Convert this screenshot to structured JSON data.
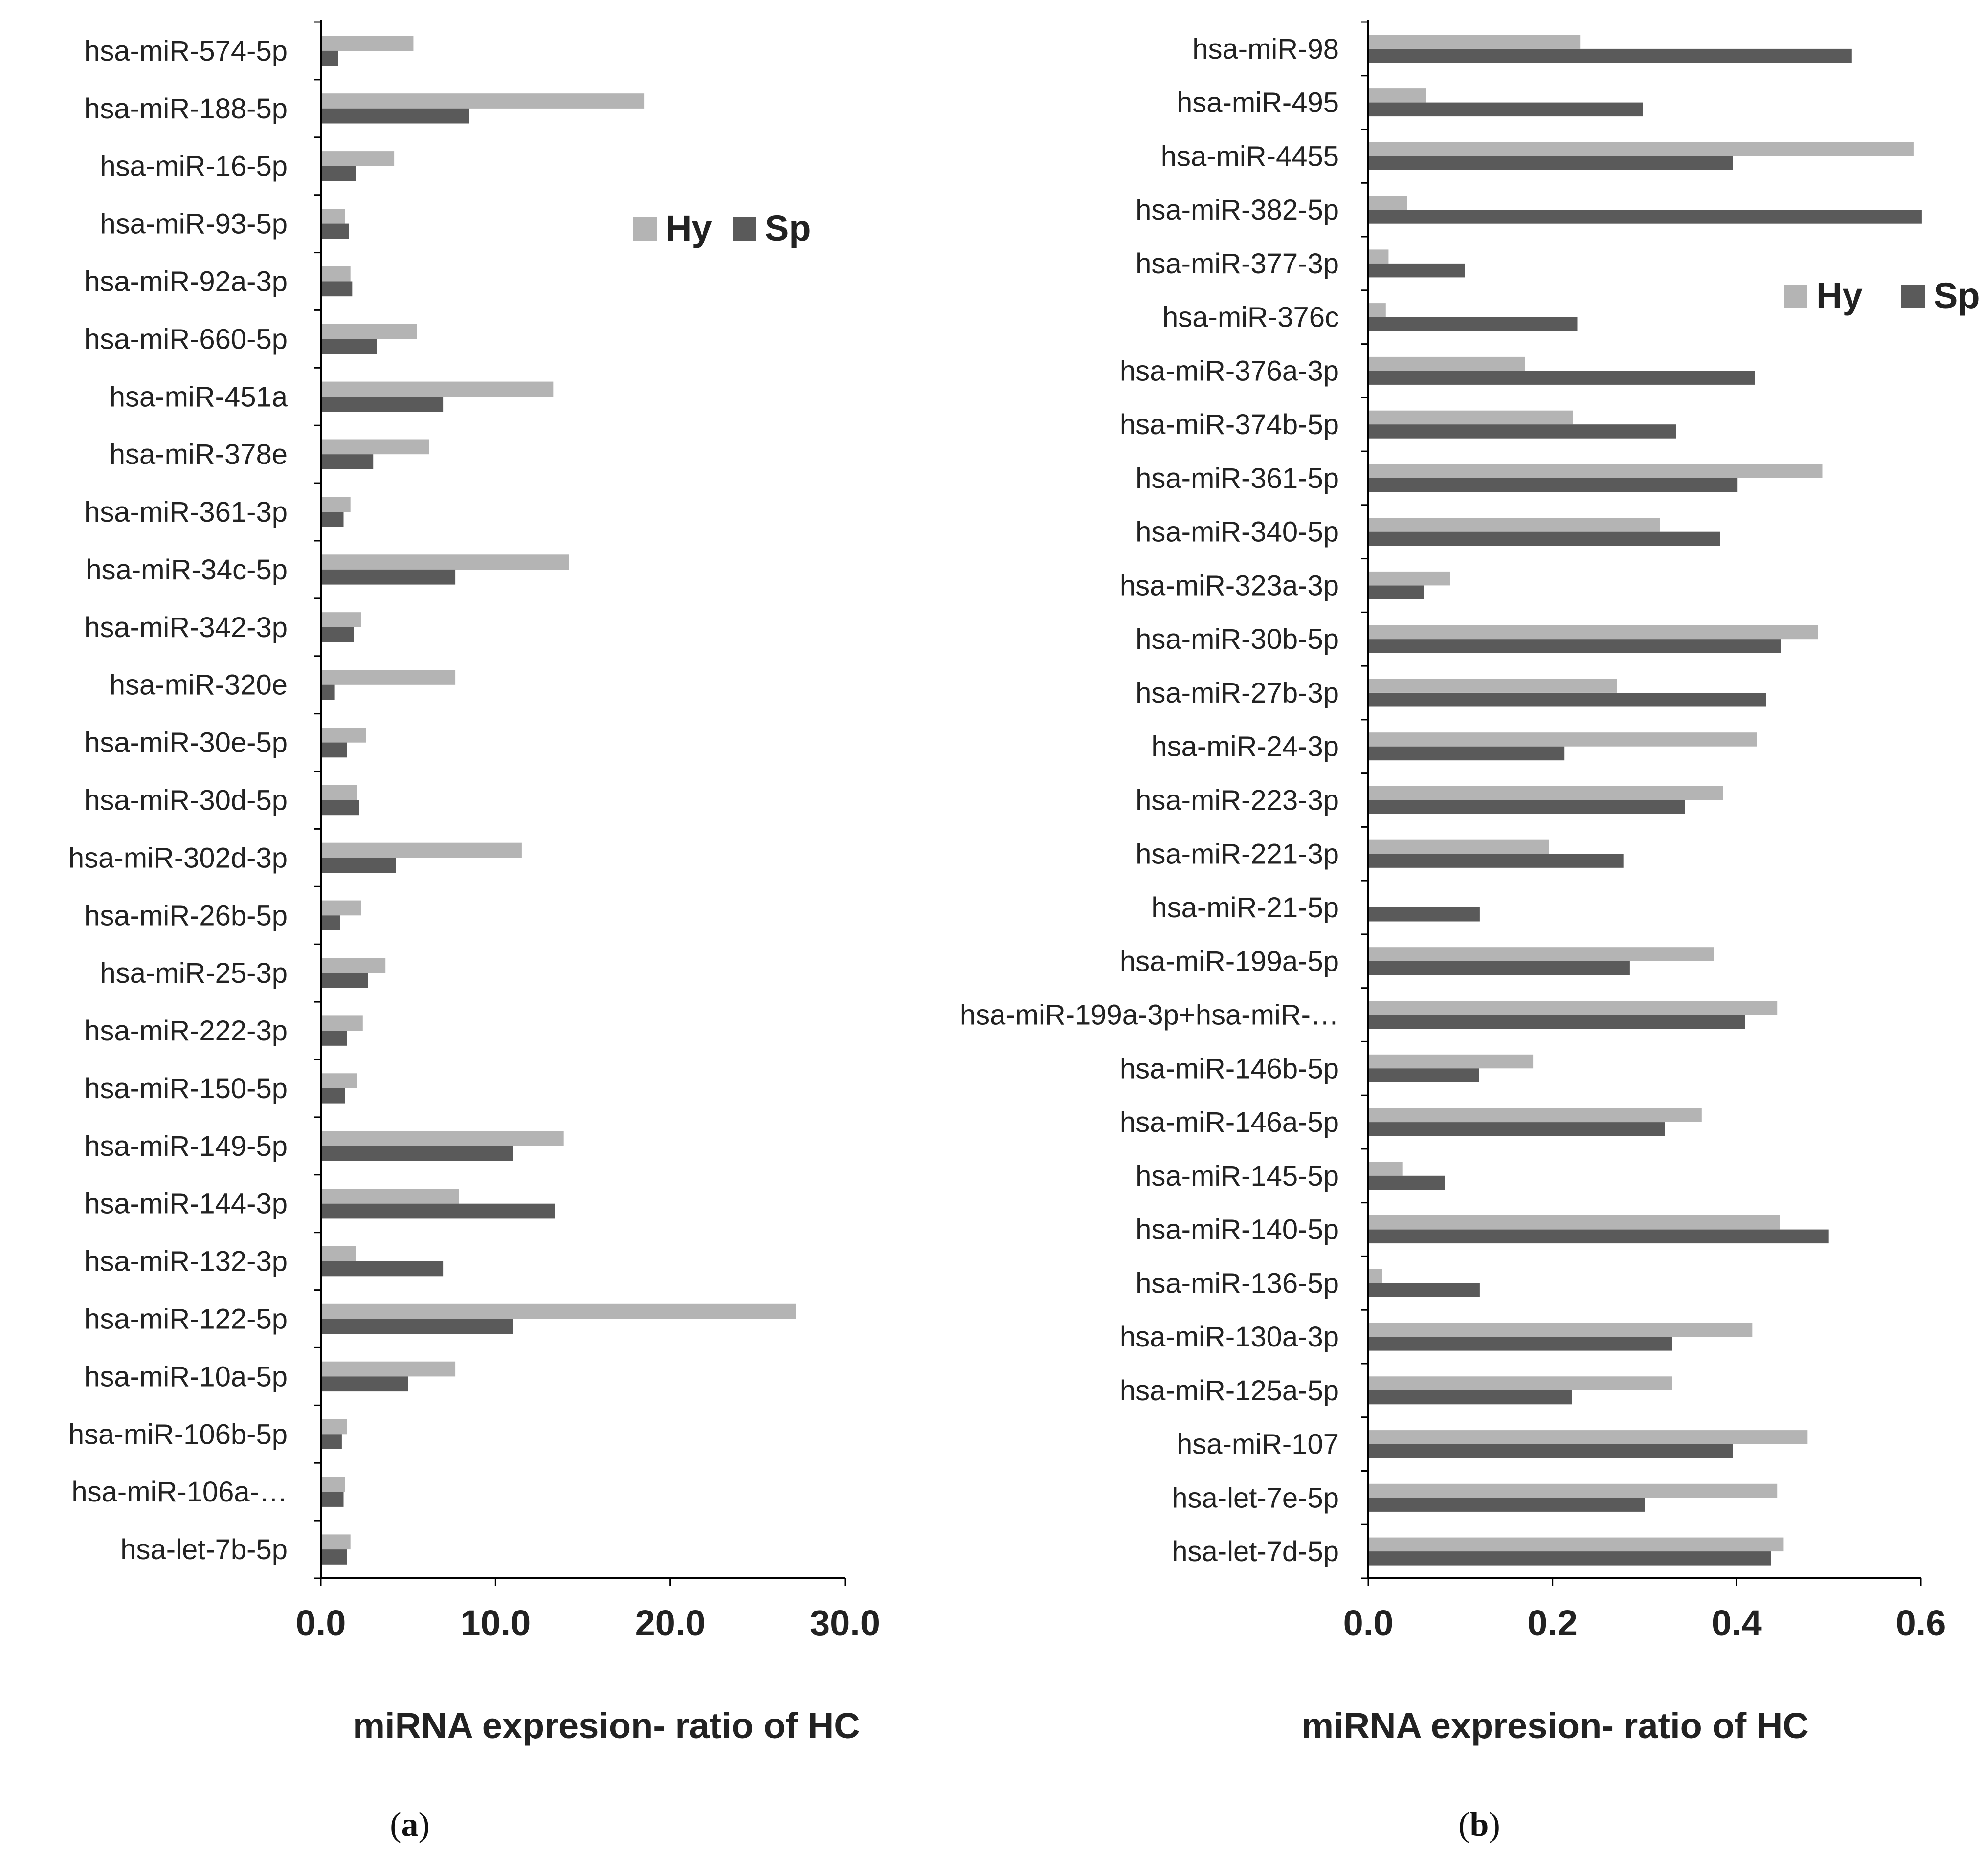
{
  "colors": {
    "hy": "#b4b4b4",
    "sp": "#5a5a5a",
    "axis": "#000000"
  },
  "chart_data": [
    {
      "type": "bar",
      "orientation": "horizontal",
      "panel_label": "a",
      "xlabel": "miRNA expresion- ratio of HC",
      "xlim": [
        0,
        30
      ],
      "xticks": [
        0,
        10,
        20,
        30
      ],
      "xtick_labels": [
        "0.0",
        "10.0",
        "20.0",
        "30.0"
      ],
      "legend_position": "top-right",
      "categories": [
        "hsa-miR-574-5p",
        "hsa-miR-188-5p",
        "hsa-miR-16-5p",
        "hsa-miR-93-5p",
        "hsa-miR-92a-3p",
        "hsa-miR-660-5p",
        "hsa-miR-451a",
        "hsa-miR-378e",
        "hsa-miR-361-3p",
        "hsa-miR-34c-5p",
        "hsa-miR-342-3p",
        "hsa-miR-320e",
        "hsa-miR-30e-5p",
        "hsa-miR-30d-5p",
        "hsa-miR-302d-3p",
        "hsa-miR-26b-5p",
        "hsa-miR-25-3p",
        "hsa-miR-222-3p",
        "hsa-miR-150-5p",
        "hsa-miR-149-5p",
        "hsa-miR-144-3p",
        "hsa-miR-132-3p",
        "hsa-miR-122-5p",
        "hsa-miR-10a-5p",
        "hsa-miR-106b-5p",
        "hsa-miR-106a-…",
        "hsa-let-7b-5p"
      ],
      "series": [
        {
          "name": "Hy",
          "values": [
            5.3,
            18.5,
            4.2,
            1.4,
            1.7,
            5.5,
            13.3,
            6.2,
            1.7,
            14.2,
            2.3,
            7.7,
            2.6,
            2.1,
            11.5,
            2.3,
            3.7,
            2.4,
            2.1,
            13.9,
            7.9,
            2.0,
            27.2,
            7.7,
            1.5,
            1.4,
            1.7
          ]
        },
        {
          "name": "Sp",
          "values": [
            1.0,
            8.5,
            2.0,
            1.6,
            1.8,
            3.2,
            7.0,
            3.0,
            1.3,
            7.7,
            1.9,
            0.8,
            1.5,
            2.2,
            4.3,
            1.1,
            2.7,
            1.5,
            1.4,
            11.0,
            13.4,
            7.0,
            11.0,
            5.0,
            1.2,
            1.3,
            1.5
          ]
        }
      ]
    },
    {
      "type": "bar",
      "orientation": "horizontal",
      "panel_label": "b",
      "xlabel": "miRNA expresion- ratio of HC",
      "xlim": [
        0,
        0.6
      ],
      "xticks": [
        0,
        0.2,
        0.4,
        0.6
      ],
      "xtick_labels": [
        "0.0",
        "0.2",
        "0.4",
        "0.6"
      ],
      "legend_position": "top-right",
      "categories": [
        "hsa-miR-98",
        "hsa-miR-495",
        "hsa-miR-4455",
        "hsa-miR-382-5p",
        "hsa-miR-377-3p",
        "hsa-miR-376c",
        "hsa-miR-376a-3p",
        "hsa-miR-374b-5p",
        "hsa-miR-361-5p",
        "hsa-miR-340-5p",
        "hsa-miR-323a-3p",
        "hsa-miR-30b-5p",
        "hsa-miR-27b-3p",
        "hsa-miR-24-3p",
        "hsa-miR-223-3p",
        "hsa-miR-221-3p",
        "hsa-miR-21-5p",
        "hsa-miR-199a-5p",
        "hsa-miR-199a-3p+hsa-miR-…",
        "hsa-miR-146b-5p",
        "hsa-miR-146a-5p",
        "hsa-miR-145-5p",
        "hsa-miR-140-5p",
        "hsa-miR-136-5p",
        "hsa-miR-130a-3p",
        "hsa-miR-125a-5p",
        "hsa-miR-107",
        "hsa-let-7e-5p",
        "hsa-let-7d-5p"
      ],
      "series": [
        {
          "name": "Hy",
          "values": [
            0.23,
            0.063,
            0.592,
            0.042,
            0.022,
            0.019,
            0.17,
            0.222,
            0.493,
            0.317,
            0.089,
            0.488,
            0.27,
            0.422,
            0.385,
            0.196,
            0.0,
            0.375,
            0.444,
            0.179,
            0.362,
            0.037,
            0.447,
            0.015,
            0.417,
            0.33,
            0.477,
            0.444,
            0.451
          ]
        },
        {
          "name": "Sp",
          "values": [
            0.525,
            0.298,
            0.396,
            0.601,
            0.105,
            0.227,
            0.42,
            0.334,
            0.401,
            0.382,
            0.06,
            0.448,
            0.432,
            0.213,
            0.344,
            0.277,
            0.121,
            0.284,
            0.409,
            0.12,
            0.322,
            0.083,
            0.5,
            0.121,
            0.33,
            0.221,
            0.396,
            0.3,
            0.437
          ]
        }
      ]
    }
  ]
}
